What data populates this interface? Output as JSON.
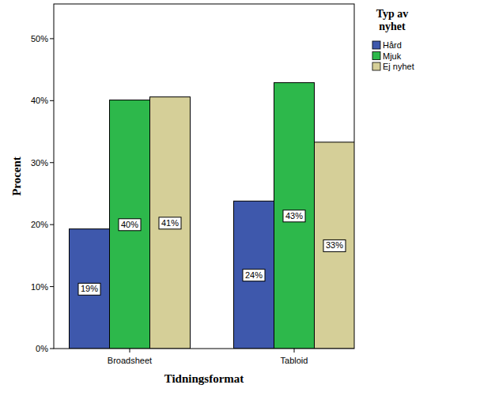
{
  "chart_data": {
    "type": "bar",
    "x_label": "Tidningsformat",
    "y_label": "Procent",
    "legend_title": "Typ av nyhet",
    "categories": [
      "Broadsheet",
      "Tabloid"
    ],
    "series": [
      {
        "name": "Hård",
        "color": "#3e58ac",
        "values": [
          19.3,
          23.8
        ],
        "value_labels": [
          "19%",
          "24%"
        ]
      },
      {
        "name": "Mjuk",
        "color": "#2db84b",
        "values": [
          40.1,
          42.9
        ],
        "value_labels": [
          "40%",
          "43%"
        ]
      },
      {
        "name": "Ej nyhet",
        "color": "#d5cf98",
        "values": [
          40.6,
          33.3
        ],
        "value_labels": [
          "41%",
          "33%"
        ]
      }
    ],
    "ylim": [
      0,
      55.6
    ],
    "yticks": [
      {
        "value": 0,
        "label": "0%"
      },
      {
        "value": 10,
        "label": "10%"
      },
      {
        "value": 20,
        "label": "20%"
      },
      {
        "value": 30,
        "label": "30%"
      },
      {
        "value": 40,
        "label": "40%"
      },
      {
        "value": 50,
        "label": "50%"
      }
    ],
    "grid": false,
    "legend": "right",
    "data_labels": true
  }
}
